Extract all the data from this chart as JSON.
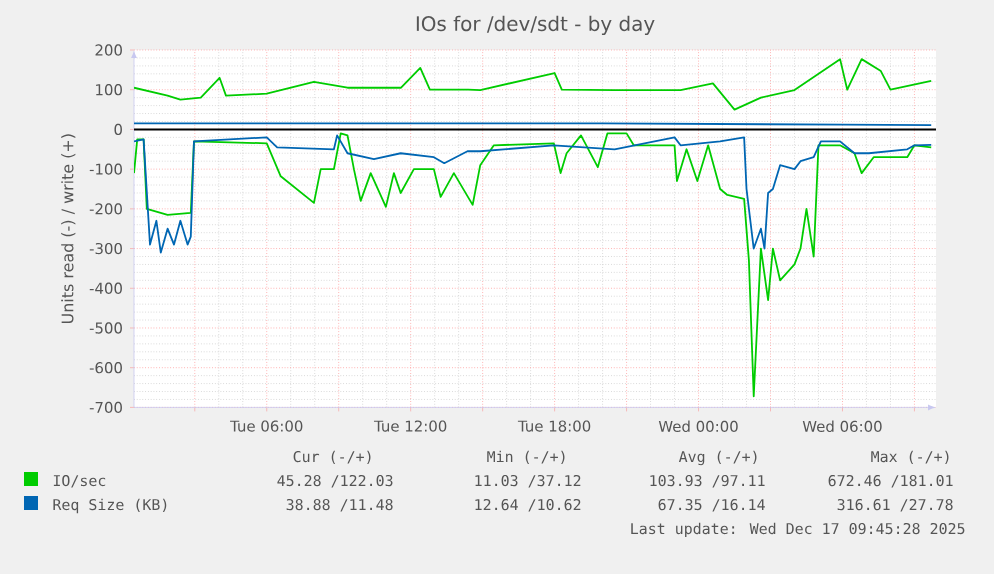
{
  "chart_data": {
    "type": "line",
    "title": "IOs for /dev/sdt - by day",
    "ylabel": "Units read (-) / write (+)",
    "xlim": [
      "2025-12-16T00:28",
      "2025-12-17T09:54"
    ],
    "ylim": [
      -700,
      200
    ],
    "xticks": [
      {
        "value": "2025-12-16T03:00",
        "label": null
      },
      {
        "value": "2025-12-16T06:00",
        "label": "Tue 06:00"
      },
      {
        "value": "2025-12-16T09:00",
        "label": null
      },
      {
        "value": "2025-12-16T12:00",
        "label": "Tue 12:00"
      },
      {
        "value": "2025-12-16T15:00",
        "label": null
      },
      {
        "value": "2025-12-16T18:00",
        "label": "Tue 18:00"
      },
      {
        "value": "2025-12-16T21:00",
        "label": null
      },
      {
        "value": "2025-12-17T00:00",
        "label": "Wed 00:00"
      },
      {
        "value": "2025-12-17T03:00",
        "label": null
      },
      {
        "value": "2025-12-17T06:00",
        "label": "Wed 06:00"
      },
      {
        "value": "2025-12-17T09:00",
        "label": null
      }
    ],
    "yticks": [
      -700,
      -600,
      -500,
      -400,
      -300,
      -200,
      -100,
      0,
      100,
      200
    ],
    "grid": true,
    "legend": "bottom",
    "marker": "none",
    "line_style": "solid",
    "ref_lines": [
      {
        "axis": "y",
        "value": 0,
        "color": "#000000"
      }
    ],
    "series": [
      {
        "name": "IO/sec",
        "color": "#00cc00",
        "x": [
          "2025-12-16T00:28",
          "2025-12-16T01:52",
          "2025-12-16T02:24",
          "2025-12-16T03:15",
          "2025-12-16T04:02",
          "2025-12-16T04:18",
          "2025-12-16T06:00",
          "2025-12-16T07:58",
          "2025-12-16T09:22",
          "2025-12-16T11:36",
          "2025-12-16T12:24",
          "2025-12-16T12:48",
          "2025-12-16T14:24",
          "2025-12-16T14:54",
          "2025-12-16T18:00",
          "2025-12-16T18:18",
          "2025-12-16T20:30",
          "2025-12-16T23:15",
          "2025-12-17T00:36",
          "2025-12-17T01:30",
          "2025-12-17T02:36",
          "2025-12-17T04:00",
          "2025-12-17T05:54",
          "2025-12-17T06:12",
          "2025-12-17T06:48",
          "2025-12-17T07:36",
          "2025-12-17T08:00",
          "2025-12-17T09:42"
        ],
        "values": [
          105,
          85,
          75,
          80,
          130,
          85,
          90,
          120,
          105,
          105,
          155,
          100,
          100,
          99,
          142,
          100,
          99,
          99,
          116,
          50,
          80,
          99,
          177,
          100,
          177,
          147,
          100,
          122
        ]
      },
      {
        "color": "#00cc00",
        "x": [
          "2025-12-16T00:28",
          "2025-12-16T00:36",
          "2025-12-16T00:52",
          "2025-12-16T01:00",
          "2025-12-16T01:52",
          "2025-12-16T02:50",
          "2025-12-16T02:58",
          "2025-12-16T06:00",
          "2025-12-16T06:35",
          "2025-12-16T07:58",
          "2025-12-16T08:15",
          "2025-12-16T08:48",
          "2025-12-16T09:05",
          "2025-12-16T09:22",
          "2025-12-16T09:38",
          "2025-12-16T09:55",
          "2025-12-16T10:20",
          "2025-12-16T10:58",
          "2025-12-16T11:18",
          "2025-12-16T11:35",
          "2025-12-16T12:08",
          "2025-12-16T12:58",
          "2025-12-16T13:15",
          "2025-12-16T13:48",
          "2025-12-16T14:35",
          "2025-12-16T14:54",
          "2025-12-16T15:28",
          "2025-12-16T17:58",
          "2025-12-16T18:15",
          "2025-12-16T18:30",
          "2025-12-16T19:06",
          "2025-12-16T19:48",
          "2025-12-16T20:12",
          "2025-12-16T21:00",
          "2025-12-16T21:18",
          "2025-12-16T23:00",
          "2025-12-16T23:06",
          "2025-12-16T23:30",
          "2025-12-16T23:57",
          "2025-12-17T00:24",
          "2025-12-17T00:54",
          "2025-12-17T01:12",
          "2025-12-17T01:54",
          "2025-12-17T02:06",
          "2025-12-17T02:18",
          "2025-12-17T02:36",
          "2025-12-17T02:54",
          "2025-12-17T03:06",
          "2025-12-17T03:24",
          "2025-12-17T04:00",
          "2025-12-17T04:15",
          "2025-12-17T04:30",
          "2025-12-17T04:48",
          "2025-12-17T05:00",
          "2025-12-17T05:54",
          "2025-12-17T06:30",
          "2025-12-17T06:48",
          "2025-12-17T07:18",
          "2025-12-17T08:42",
          "2025-12-17T09:00",
          "2025-12-17T09:42"
        ],
        "values": [
          -110,
          -25,
          -25,
          -200,
          -215,
          -210,
          -30,
          -35,
          -118,
          -185,
          -100,
          -100,
          -10,
          -15,
          -100,
          -180,
          -110,
          -195,
          -110,
          -160,
          -100,
          -100,
          -170,
          -110,
          -190,
          -90,
          -40,
          -35,
          -110,
          -60,
          -15,
          -95,
          -10,
          -10,
          -40,
          -40,
          -130,
          -50,
          -130,
          -40,
          -150,
          -165,
          -175,
          -330,
          -672,
          -300,
          -430,
          -300,
          -380,
          -340,
          -300,
          -200,
          -320,
          -40,
          -40,
          -60,
          -110,
          -70,
          -70,
          -40,
          -45
        ]
      },
      {
        "name": "Req Size (KB)",
        "color": "#0066b3",
        "x": [
          "2025-12-16T00:28",
          "2025-12-16T10:00",
          "2025-12-16T20:00",
          "2025-12-17T06:00",
          "2025-12-17T09:42"
        ],
        "values": [
          15,
          15,
          15,
          12,
          11
        ]
      },
      {
        "color": "#0066b3",
        "x": [
          "2025-12-16T00:28",
          "2025-12-16T00:52",
          "2025-12-16T01:08",
          "2025-12-16T01:24",
          "2025-12-16T01:35",
          "2025-12-16T01:52",
          "2025-12-16T02:08",
          "2025-12-16T02:24",
          "2025-12-16T02:42",
          "2025-12-16T02:50",
          "2025-12-16T02:58",
          "2025-12-16T06:00",
          "2025-12-16T06:26",
          "2025-12-16T08:48",
          "2025-12-16T08:56",
          "2025-12-16T09:22",
          "2025-12-16T10:28",
          "2025-12-16T11:35",
          "2025-12-16T12:58",
          "2025-12-16T13:24",
          "2025-12-16T14:22",
          "2025-12-16T14:54",
          "2025-12-16T17:58",
          "2025-12-16T20:30",
          "2025-12-16T23:00",
          "2025-12-16T23:15",
          "2025-12-17T00:54",
          "2025-12-17T01:54",
          "2025-12-17T02:00",
          "2025-12-17T02:18",
          "2025-12-17T02:36",
          "2025-12-17T02:45",
          "2025-12-17T02:54",
          "2025-12-17T03:06",
          "2025-12-17T03:24",
          "2025-12-17T04:00",
          "2025-12-17T04:15",
          "2025-12-17T04:48",
          "2025-12-17T05:06",
          "2025-12-17T05:54",
          "2025-12-17T06:30",
          "2025-12-17T07:06",
          "2025-12-17T08:42",
          "2025-12-17T09:00",
          "2025-12-17T09:42"
        ],
        "values": [
          -30,
          -25,
          -290,
          -230,
          -310,
          -250,
          -290,
          -230,
          -290,
          -270,
          -30,
          -20,
          -45,
          -50,
          -15,
          -60,
          -75,
          -60,
          -70,
          -85,
          -55,
          -55,
          -40,
          -50,
          -20,
          -40,
          -30,
          -20,
          -150,
          -300,
          -250,
          -300,
          -160,
          -150,
          -90,
          -100,
          -80,
          -70,
          -30,
          -30,
          -60,
          -60,
          -50,
          -40,
          -39
        ]
      }
    ],
    "annotations": [
      "Cur (-/+)",
      "Min (-/+)",
      "Avg (-/+)",
      "Max (-/+)",
      "45.28 /122.03",
      "11.03 /37.12",
      "103.93 /97.11",
      "672.46 /181.01",
      "38.88 /11.48",
      "12.64 /10.62",
      "67.35 /16.14",
      "316.61 /27.78",
      "Last update: Wed Dec 17 09:45:28 2025"
    ]
  }
}
